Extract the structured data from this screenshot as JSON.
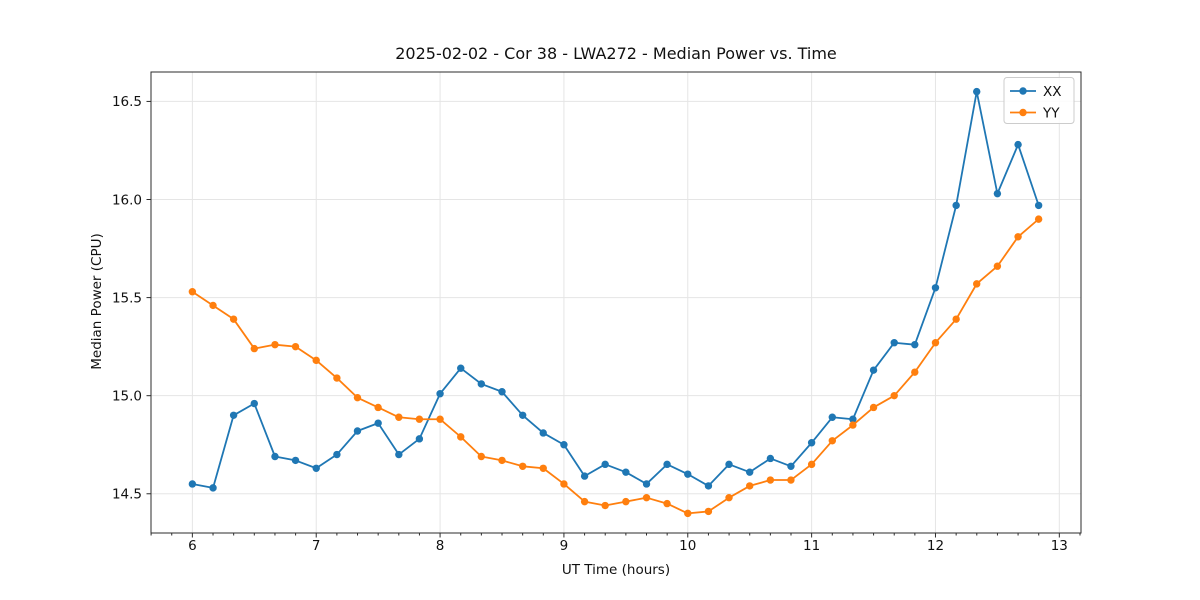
{
  "figure": {
    "background": "#ffffff"
  },
  "chart_data": {
    "type": "line",
    "title": "2025-02-02 - Cor 38 - LWA272 - Median Power vs. Time",
    "xlabel": "UT Time (hours)",
    "ylabel": "Median Power (CPU)",
    "xlim": [
      5.666,
      13.175
    ],
    "ylim": [
      14.3,
      16.65
    ],
    "grid": true,
    "legend": {
      "position": "upper right",
      "entries": [
        "XX",
        "YY"
      ]
    },
    "x_ticks": {
      "values": [
        6,
        7,
        8,
        9,
        10,
        11,
        12,
        13
      ],
      "labels": [
        "6",
        "7",
        "8",
        "9",
        "10",
        "11",
        "12",
        "13"
      ],
      "minor_step": 0.16667
    },
    "y_ticks": {
      "values": [
        14.5,
        15.0,
        15.5,
        16.0,
        16.5
      ],
      "labels": [
        "14.5",
        "15.0",
        "15.5",
        "16.0",
        "16.5"
      ]
    },
    "x": [
      6.0,
      6.167,
      6.333,
      6.5,
      6.667,
      6.833,
      7.0,
      7.167,
      7.333,
      7.5,
      7.667,
      7.833,
      8.0,
      8.167,
      8.333,
      8.5,
      8.667,
      8.833,
      9.0,
      9.167,
      9.333,
      9.5,
      9.667,
      9.833,
      10.0,
      10.167,
      10.333,
      10.5,
      10.667,
      10.833,
      11.0,
      11.167,
      11.333,
      11.5,
      11.667,
      11.833,
      12.0,
      12.167,
      12.333,
      12.5,
      12.667,
      12.833
    ],
    "series": [
      {
        "name": "XX",
        "color": "#1f77b4",
        "marker": "circle",
        "values": [
          14.55,
          14.53,
          14.9,
          14.96,
          14.69,
          14.67,
          14.63,
          14.7,
          14.82,
          14.86,
          14.7,
          14.78,
          15.01,
          15.14,
          15.06,
          15.02,
          14.9,
          14.81,
          14.75,
          14.59,
          14.65,
          14.61,
          14.55,
          14.65,
          14.6,
          14.54,
          14.65,
          14.61,
          14.68,
          14.64,
          14.76,
          14.89,
          14.88,
          15.13,
          15.27,
          15.26,
          15.55,
          15.97,
          16.55,
          16.03,
          16.28,
          15.97
        ]
      },
      {
        "name": "YY",
        "color": "#ff7f0e",
        "marker": "circle",
        "values": [
          15.53,
          15.46,
          15.39,
          15.24,
          15.26,
          15.25,
          15.18,
          15.09,
          14.99,
          14.94,
          14.89,
          14.88,
          14.88,
          14.79,
          14.69,
          14.67,
          14.64,
          14.63,
          14.55,
          14.46,
          14.44,
          14.46,
          14.48,
          14.45,
          14.4,
          14.41,
          14.48,
          14.54,
          14.57,
          14.57,
          14.65,
          14.77,
          14.85,
          14.94,
          15.0,
          15.12,
          15.27,
          15.39,
          15.57,
          15.66,
          15.81,
          15.9
        ]
      }
    ],
    "colors": {
      "grid": "#e5e5e5",
      "spine": "#2b2b2b",
      "text": "#111111",
      "legend_border": "#cccccc",
      "legend_bg": "#ffffff"
    }
  }
}
